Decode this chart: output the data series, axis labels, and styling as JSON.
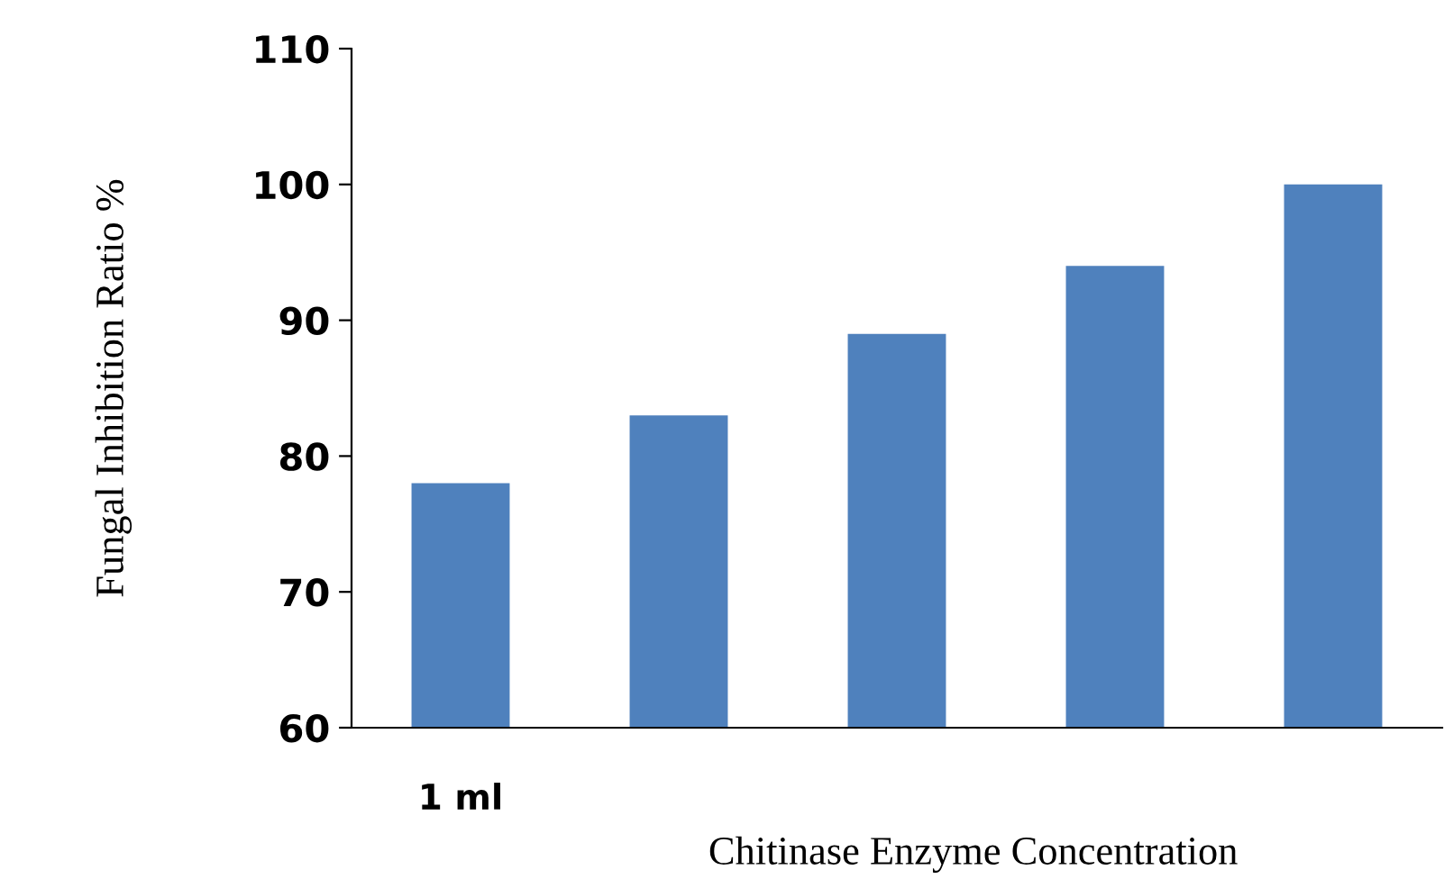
{
  "chart_data": {
    "type": "bar",
    "ylabel": "Fungal Inhibition Ratio %",
    "xlabel": "Chitinase Enzyme Concentration",
    "categories": [
      "1 ml",
      null,
      null,
      null,
      null
    ],
    "values": [
      78,
      83,
      89,
      94,
      100
    ],
    "color": "#4f81bd",
    "ylim": [
      60,
      110
    ],
    "yticks": [
      60,
      70,
      80,
      90,
      100,
      110
    ],
    "grid": false,
    "legend": false
  }
}
